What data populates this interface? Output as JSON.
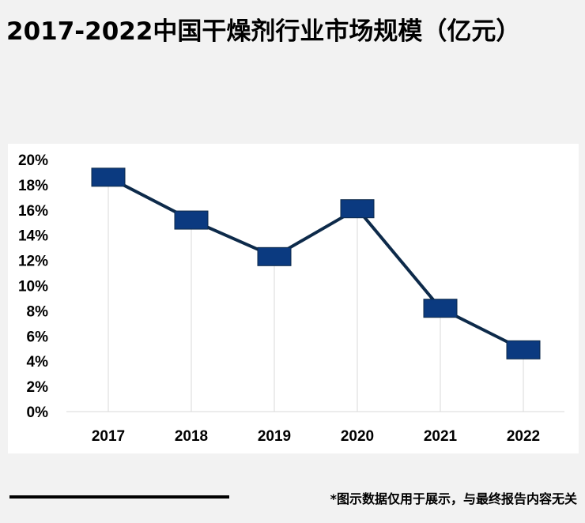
{
  "title": "2017-2022中国干燥剂行业市场规模（亿元）",
  "footnote": "*图示数据仅用于展示，与最终报告内容无关",
  "colors": {
    "line": "#0d2a4a",
    "marker": "#0b3a80",
    "background": "#f2f2f2",
    "panel": "#ffffff",
    "grid": "#d9d9d9"
  },
  "chart_data": {
    "type": "line",
    "title": "2017-2022中国干燥剂行业市场规模（亿元）",
    "xlabel": "",
    "ylabel": "",
    "categories": [
      "2017",
      "2018",
      "2019",
      "2020",
      "2021",
      "2022"
    ],
    "series": [
      {
        "name": "市场规模",
        "values": [
          18.6,
          15.2,
          12.3,
          16.1,
          8.2,
          4.9
        ]
      }
    ],
    "ylim": [
      0,
      20
    ],
    "yticks": [
      "0%",
      "2%",
      "4%",
      "6%",
      "8%",
      "10%",
      "12%",
      "14%",
      "16%",
      "18%",
      "20%"
    ],
    "marker": "rectangle",
    "legend": "none"
  }
}
